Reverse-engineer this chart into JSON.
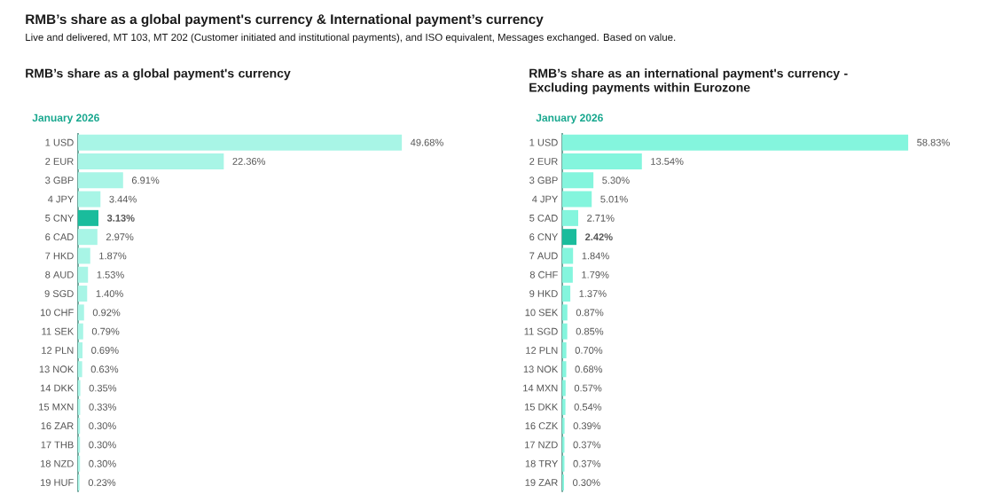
{
  "chart_data": [
    {
      "type": "bar",
      "orientation": "horizontal",
      "title": "RMB’s share as a global payment's currency",
      "subtitle": "January 2026",
      "annotations": [
        "RMB’s share as a global payment's currency & International payment’s currency",
        "Live and delivered, MT 103, MT 202 (Customer initiated and institutional payments), and ISO equivalent, Messages exchanged. Based on value."
      ],
      "categories": [
        "1 USD",
        "2 EUR",
        "3 GBP",
        "4 JPY",
        "5 CNY",
        "6 CAD",
        "7 HKD",
        "8 AUD",
        "9 SGD",
        "10 CHF",
        "11 SEK",
        "12 PLN",
        "13 NOK",
        "14 DKK",
        "15 MXN",
        "16 ZAR",
        "17 THB",
        "18 NZD",
        "19 HUF"
      ],
      "values": [
        49.68,
        22.36,
        6.91,
        3.44,
        3.13,
        2.97,
        1.87,
        1.53,
        1.4,
        0.92,
        0.79,
        0.69,
        0.63,
        0.35,
        0.33,
        0.3,
        0.3,
        0.3,
        0.23
      ],
      "value_labels": [
        "49.68%",
        "22.36%",
        "6.91%",
        "3.44%",
        "**3.13%**",
        "2.97%",
        "1.87%",
        "1.53%",
        "1.40%",
        "0.92%",
        "0.79%",
        "0.69%",
        "0.63%",
        "0.35%",
        "0.33%",
        "0.30%",
        "0.30%",
        "0.30%",
        "0.23%"
      ],
      "colors": [
        "#a8f5e6",
        "#a8f5e6",
        "#a8f5e6",
        "#a8f5e6",
        "#1abc9c",
        "#a8f5e6",
        "#a8f5e6",
        "#a8f5e6",
        "#a8f5e6",
        "#a8f5e6",
        "#a8f5e6",
        "#a8f5e6",
        "#a8f5e6",
        "#a8f5e6",
        "#a8f5e6",
        "#a8f5e6",
        "#a8f5e6",
        "#a8f5e6",
        "#a8f5e6"
      ],
      "tick_labels": "y"
    },
    {
      "type": "bar",
      "orientation": "horizontal",
      "title": "RMB’s share as an international payment's currency - Excluding payments within Eurozone",
      "subtitle": "January 2026",
      "categories": [
        "1 USD",
        "2 EUR",
        "3 GBP",
        "4 JPY",
        "5 CAD",
        "6 CNY",
        "7 AUD",
        "8 CHF",
        "9 HKD",
        "10 SEK",
        "11 SGD",
        "12 PLN",
        "13 NOK",
        "14 MXN",
        "15 DKK",
        "16 CZK",
        "17 NZD",
        "18 TRY",
        "19 ZAR"
      ],
      "values": [
        58.83,
        13.54,
        5.3,
        5.01,
        2.71,
        2.42,
        1.84,
        1.79,
        1.37,
        0.87,
        0.85,
        0.7,
        0.68,
        0.57,
        0.54,
        0.39,
        0.37,
        0.37,
        0.3
      ],
      "value_labels": [
        "58.83%",
        "13.54%",
        "5.30%",
        "5.01%",
        "2.71%",
        "**2.42%**",
        "1.84%",
        "1.79%",
        "1.37%",
        "0.87%",
        "0.85%",
        "0.70%",
        "0.68%",
        "0.57%",
        "0.54%",
        "0.39%",
        "0.37%",
        "0.37%",
        "0.30%"
      ],
      "colors": [
        "#84f5dd",
        "#84f5dd",
        "#84f5dd",
        "#84f5dd",
        "#84f5dd",
        "#1abc9c",
        "#84f5dd",
        "#84f5dd",
        "#84f5dd",
        "#84f5dd",
        "#84f5dd",
        "#84f5dd",
        "#84f5dd",
        "#84f5dd",
        "#84f5dd",
        "#84f5dd",
        "#84f5dd",
        "#84f5dd",
        "#84f5dd"
      ],
      "tick_labels": "y"
    }
  ]
}
